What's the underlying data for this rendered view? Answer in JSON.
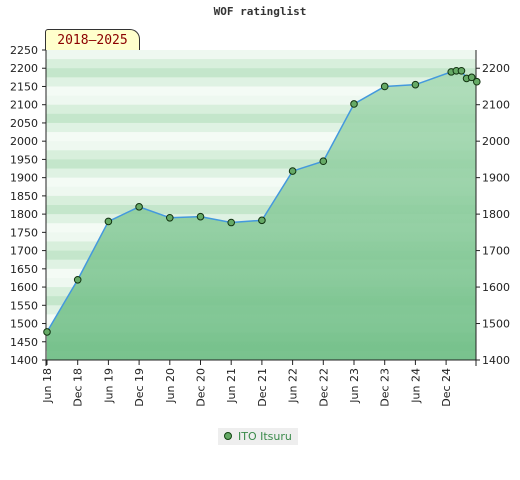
{
  "chart_data": {
    "type": "area",
    "title": "WOF ratinglist",
    "period_label": "2018–2025",
    "ylim": [
      1400,
      2250
    ],
    "y_ticks_left": [
      1400,
      1450,
      1500,
      1550,
      1600,
      1650,
      1700,
      1750,
      1800,
      1850,
      1900,
      1950,
      2000,
      2050,
      2100,
      2150,
      2200,
      2250
    ],
    "y_ticks_right": [
      1400,
      1500,
      1600,
      1700,
      1800,
      1900,
      2000,
      2100,
      2200
    ],
    "x_ticks": [
      "Jun 18",
      "Dec 18",
      "Jun 19",
      "Dec 19",
      "Jun 20",
      "Dec 20",
      "Jun 21",
      "Dec 21",
      "Jun 22",
      "Dec 22",
      "Jun 23",
      "Dec 23",
      "Jun 24",
      "Dec 24"
    ],
    "legend_position": "bottom",
    "grid": true,
    "colors": {
      "area": "#8ccc9c",
      "line": "#4499dd",
      "marker": "#66aa66"
    },
    "series": [
      {
        "name": "ITO Itsuru",
        "points": [
          {
            "x": "2018-06",
            "y": 1477
          },
          {
            "x": "2018-12",
            "y": 1620
          },
          {
            "x": "2019-06",
            "y": 1780
          },
          {
            "x": "2019-12",
            "y": 1820
          },
          {
            "x": "2020-06",
            "y": 1790
          },
          {
            "x": "2020-12",
            "y": 1793
          },
          {
            "x": "2021-06",
            "y": 1777
          },
          {
            "x": "2021-12",
            "y": 1783
          },
          {
            "x": "2022-06",
            "y": 1918
          },
          {
            "x": "2022-12",
            "y": 1945
          },
          {
            "x": "2023-06",
            "y": 2102
          },
          {
            "x": "2023-12",
            "y": 2150
          },
          {
            "x": "2024-06",
            "y": 2155
          },
          {
            "x": "2025-01",
            "y": 2190
          },
          {
            "x": "2025-02",
            "y": 2193
          },
          {
            "x": "2025-03",
            "y": 2193
          },
          {
            "x": "2025-04",
            "y": 2172
          },
          {
            "x": "2025-05",
            "y": 2175
          },
          {
            "x": "2025-06",
            "y": 2163
          }
        ]
      }
    ]
  }
}
